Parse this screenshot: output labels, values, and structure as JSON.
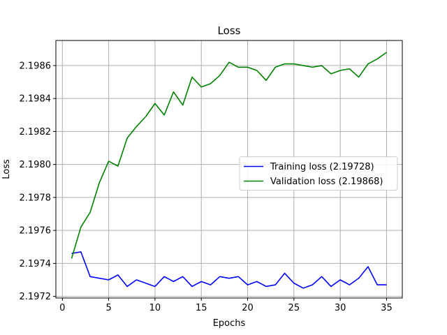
{
  "chart_data": {
    "type": "line",
    "title": "Loss",
    "xlabel": "Epochs",
    "ylabel": "Loss",
    "xlim": [
      -0.7,
      36.7
    ],
    "ylim": [
      2.19719,
      2.198752
    ],
    "xticks": [
      0,
      5,
      10,
      15,
      20,
      25,
      30,
      35
    ],
    "yticks": [
      2.1972,
      2.1974,
      2.1976,
      2.1978,
      2.198,
      2.1982,
      2.1984,
      2.1986
    ],
    "ytick_labels": [
      "2.1972",
      "2.1974",
      "2.1976",
      "2.1978",
      "2.1980",
      "2.1982",
      "2.1984",
      "2.1986"
    ],
    "grid": true,
    "legend_position": "center-right",
    "x": [
      1,
      2,
      3,
      4,
      5,
      6,
      7,
      8,
      9,
      10,
      11,
      12,
      13,
      14,
      15,
      16,
      17,
      18,
      19,
      20,
      21,
      22,
      23,
      24,
      25,
      26,
      27,
      28,
      29,
      30,
      31,
      32,
      33,
      34,
      35
    ],
    "series": [
      {
        "name": "Training loss (2.19728)",
        "color": "#0000ff",
        "values": [
          2.19746,
          2.19747,
          2.19732,
          2.19731,
          2.1973,
          2.19733,
          2.19726,
          2.1973,
          2.19728,
          2.19726,
          2.19732,
          2.19729,
          2.19732,
          2.19726,
          2.19729,
          2.19727,
          2.19732,
          2.19731,
          2.19732,
          2.19727,
          2.19729,
          2.19726,
          2.19727,
          2.19734,
          2.19728,
          2.19725,
          2.19727,
          2.19732,
          2.19726,
          2.1973,
          2.19727,
          2.19731,
          2.19738,
          2.19727,
          2.19727
        ]
      },
      {
        "name": "Validation loss (2.19868)",
        "color": "#008000",
        "values": [
          2.19743,
          2.19762,
          2.19771,
          2.19789,
          2.19802,
          2.19799,
          2.19816,
          2.19823,
          2.19829,
          2.19837,
          2.1983,
          2.19844,
          2.19836,
          2.19853,
          2.19847,
          2.19849,
          2.19854,
          2.19862,
          2.19859,
          2.19859,
          2.19857,
          2.19851,
          2.19859,
          2.19861,
          2.19861,
          2.1986,
          2.19859,
          2.1986,
          2.19855,
          2.19857,
          2.19858,
          2.19853,
          2.19861,
          2.19864,
          2.19868
        ]
      }
    ]
  }
}
